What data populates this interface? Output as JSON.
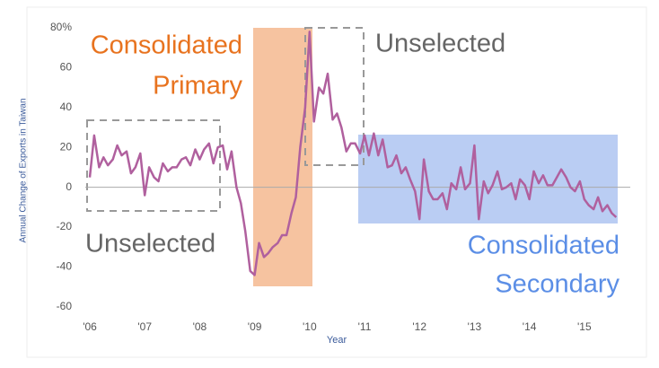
{
  "chart_data": {
    "type": "line",
    "y_label": "Annual Change of Exports in Taiwan",
    "x_label": "Year",
    "x": [
      2006.0,
      2006.08,
      2006.17,
      2006.25,
      2006.33,
      2006.42,
      2006.5,
      2006.58,
      2006.67,
      2006.75,
      2006.83,
      2006.92,
      2007.0,
      2007.08,
      2007.17,
      2007.25,
      2007.33,
      2007.42,
      2007.5,
      2007.58,
      2007.67,
      2007.75,
      2007.83,
      2007.92,
      2008.0,
      2008.08,
      2008.17,
      2008.25,
      2008.33,
      2008.42,
      2008.5,
      2008.58,
      2008.67,
      2008.75,
      2008.83,
      2008.92,
      2009.0,
      2009.08,
      2009.17,
      2009.25,
      2009.33,
      2009.42,
      2009.5,
      2009.58,
      2009.67,
      2009.75,
      2009.83,
      2009.92,
      2010.0,
      2010.08,
      2010.17,
      2010.25,
      2010.33,
      2010.42,
      2010.5,
      2010.58,
      2010.67,
      2010.75,
      2010.83,
      2010.92,
      2011.0,
      2011.08,
      2011.17,
      2011.25,
      2011.33,
      2011.42,
      2011.5,
      2011.58,
      2011.67,
      2011.75,
      2011.83,
      2011.92,
      2012.0,
      2012.08,
      2012.17,
      2012.25,
      2012.33,
      2012.42,
      2012.5,
      2012.58,
      2012.67,
      2012.75,
      2012.83,
      2012.92,
      2013.0,
      2013.08,
      2013.17,
      2013.25,
      2013.33,
      2013.42,
      2013.5,
      2013.58,
      2013.67,
      2013.75,
      2013.83,
      2013.92,
      2014.0,
      2014.08,
      2014.17,
      2014.25,
      2014.33,
      2014.42,
      2014.5,
      2014.58,
      2014.67,
      2014.75,
      2014.83,
      2014.92,
      2015.0,
      2015.08,
      2015.17,
      2015.25,
      2015.33,
      2015.42,
      2015.5,
      2015.58
    ],
    "series": [
      {
        "color": "#b0609e",
        "values": [
          5,
          26,
          10,
          15,
          11,
          14,
          21,
          16,
          18,
          7,
          10,
          17,
          -4,
          10,
          5,
          3,
          12,
          8,
          10,
          10,
          14,
          15,
          11,
          19,
          14,
          19,
          22,
          12,
          20,
          21,
          9,
          18,
          0,
          -8,
          -22,
          -42,
          -44,
          -28,
          -35,
          -33,
          -30,
          -28,
          -24,
          -24,
          -13,
          -5,
          20,
          40,
          78,
          33,
          50,
          47,
          57,
          34,
          37,
          30,
          18,
          22,
          22,
          17,
          26,
          16,
          27,
          16,
          24,
          10,
          11,
          16,
          7,
          10,
          4,
          -2,
          -16,
          14,
          -2,
          -6,
          -6,
          -3,
          -11,
          2,
          -1,
          10,
          -1,
          2,
          21,
          -16,
          3,
          -3,
          1,
          8,
          -1,
          0,
          2,
          -6,
          4,
          1,
          -6,
          8,
          2,
          6,
          1,
          1,
          5,
          9,
          5,
          0,
          -2,
          3,
          -6,
          -9,
          -11,
          -5,
          -12,
          -9,
          -13,
          -15
        ]
      }
    ],
    "xlim": [
      2005.9,
      2015.9
    ],
    "xticks": [
      {
        "value": 2006,
        "label": "'06"
      },
      {
        "value": 2007,
        "label": "'07"
      },
      {
        "value": 2008,
        "label": "'08"
      },
      {
        "value": 2009,
        "label": "'09"
      },
      {
        "value": 2010,
        "label": "'10"
      },
      {
        "value": 2011,
        "label": "'11"
      },
      {
        "value": 2012,
        "label": "'12"
      },
      {
        "value": 2013,
        "label": "'13"
      },
      {
        "value": 2014,
        "label": "'14"
      },
      {
        "value": 2015,
        "label": "'15"
      }
    ],
    "ylim": [
      -65,
      85
    ],
    "yticks": [
      -60,
      -40,
      -20,
      0,
      20,
      40,
      60,
      {
        "value": 80,
        "label": "80%"
      }
    ],
    "zero_line": true,
    "annotations": {
      "primary": [
        "Consolidated",
        "Primary"
      ],
      "secondary": [
        "Consolidated",
        "Secondary"
      ],
      "unselected": [
        "Unselected",
        "Unselected"
      ]
    }
  }
}
